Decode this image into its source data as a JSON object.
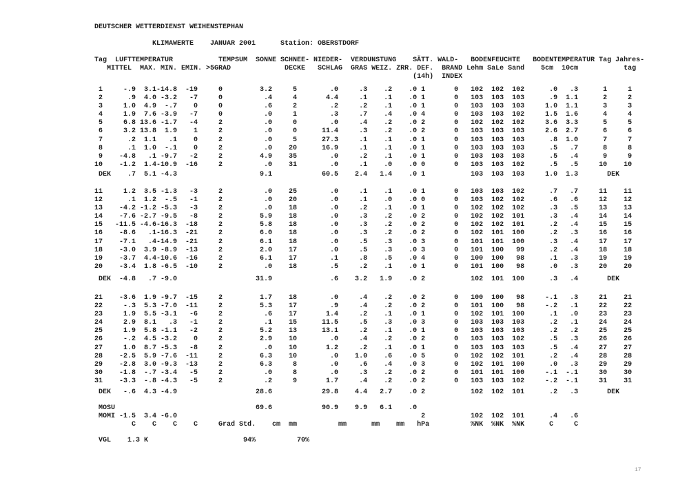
{
  "report": {
    "title": "DEUTSCHER WETTERDIENST WEIHENSTEPHAN",
    "subtitle": {
      "left": "KLIMAWERTE",
      "middle": "JANUAR 2001",
      "right": "Station: OBERSTDORF"
    },
    "page_number": "17"
  },
  "table": {
    "header1": [
      "Tag",
      "LUFTTEMPERATUR",
      "TEMPSUM",
      "SONNE",
      "SCHNEE-",
      "NIEDER-",
      "VERDUNSTUNG",
      "SÄTT.",
      "WALD-",
      "BODENFEUCHTE",
      "BODENTEMPERATUR",
      "Tag",
      "Jahres-"
    ],
    "header2": [
      "MITTEL",
      "MAX.",
      "MIN.",
      "EMIN.",
      ">5GRAD",
      "DECKE",
      "SCHLAG",
      "GRAS",
      "WEIZ.",
      "ZRR.",
      "DEF.",
      "BRAND",
      "Lehm",
      "SaLe",
      "Sand",
      "5cm",
      "10cm",
      "tag"
    ],
    "header3": [
      "(14h)",
      "INDEX"
    ],
    "rows": [
      [
        "1",
        "-.9",
        "3.1",
        "-14.8",
        "-19",
        "0",
        "3.2",
        "5",
        ".0",
        ".3",
        ".2",
        ".0",
        "1",
        "0",
        "102",
        "102",
        "102",
        ".0",
        ".3",
        "1",
        "1"
      ],
      [
        "2",
        ".9",
        "4.0",
        "-3.2",
        "-7",
        "0",
        ".4",
        "4",
        "4.4",
        ".1",
        ".1",
        ".0",
        "1",
        "0",
        "103",
        "103",
        "103",
        ".9",
        "1.1",
        "2",
        "2"
      ],
      [
        "3",
        "1.0",
        "4.9",
        "-.7",
        "0",
        "0",
        ".6",
        "2",
        ".2",
        ".2",
        ".1",
        ".0",
        "1",
        "0",
        "103",
        "103",
        "103",
        "1.0",
        "1.1",
        "3",
        "3"
      ],
      [
        "4",
        "1.9",
        "7.6",
        "-3.9",
        "-7",
        "0",
        ".0",
        "1",
        ".3",
        ".7",
        ".4",
        ".0",
        "4",
        "0",
        "103",
        "103",
        "102",
        "1.5",
        "1.6",
        "4",
        "4"
      ],
      [
        "5",
        "6.8",
        "13.6",
        "-1.7",
        "-4",
        "2",
        ".0",
        "0",
        ".0",
        ".4",
        ".2",
        ".0",
        "2",
        "0",
        "102",
        "102",
        "102",
        "3.6",
        "3.3",
        "5",
        "5"
      ],
      [
        "6",
        "3.2",
        "13.8",
        "1.9",
        "1",
        "2",
        ".0",
        "0",
        "11.4",
        ".3",
        ".2",
        ".0",
        "2",
        "0",
        "103",
        "103",
        "103",
        "2.6",
        "2.7",
        "6",
        "6"
      ],
      [
        "7",
        ".2",
        "1.1",
        ".1",
        "0",
        "2",
        ".0",
        "5",
        "27.3",
        ".1",
        ".1",
        ".0",
        "1",
        "0",
        "103",
        "103",
        "103",
        ".8",
        "1.0",
        "7",
        "7"
      ],
      [
        "8",
        ".1",
        "1.0",
        "-.1",
        "0",
        "2",
        ".0",
        "20",
        "16.9",
        ".1",
        ".1",
        ".0",
        "1",
        "0",
        "103",
        "103",
        "103",
        ".5",
        ".7",
        "8",
        "8"
      ],
      [
        "9",
        "-4.8",
        ".1",
        "-9.7",
        "-2",
        "2",
        "4.9",
        "35",
        ".0",
        ".2",
        ".1",
        ".0",
        "1",
        "0",
        "103",
        "103",
        "103",
        ".5",
        ".4",
        "9",
        "9"
      ],
      [
        "10",
        "-1.2",
        "1.4",
        "-10.9",
        "-16",
        "2",
        ".0",
        "31",
        ".0",
        ".1",
        ".0",
        ".0",
        "0",
        "0",
        "103",
        "103",
        "102",
        ".5",
        ".5",
        "10",
        "10"
      ],
      [
        "11",
        "1.2",
        "3.5",
        "-1.3",
        "-3",
        "2",
        ".0",
        "25",
        ".0",
        ".1",
        ".1",
        ".0",
        "1",
        "0",
        "103",
        "103",
        "102",
        ".7",
        ".7",
        "11",
        "11"
      ],
      [
        "12",
        ".1",
        "1.2",
        "-.5",
        "-1",
        "2",
        ".0",
        "20",
        ".0",
        ".1",
        ".0",
        ".0",
        "0",
        "0",
        "103",
        "102",
        "102",
        ".6",
        ".6",
        "12",
        "12"
      ],
      [
        "13",
        "-4.2",
        "-1.2",
        "-5.3",
        "-3",
        "2",
        ".0",
        "18",
        ".0",
        ".2",
        ".1",
        ".0",
        "1",
        "0",
        "102",
        "102",
        "102",
        ".3",
        ".5",
        "13",
        "13"
      ],
      [
        "14",
        "-7.6",
        "-2.7",
        "-9.5",
        "-8",
        "2",
        "5.9",
        "18",
        ".0",
        ".3",
        ".2",
        ".0",
        "2",
        "0",
        "102",
        "102",
        "101",
        ".3",
        ".4",
        "14",
        "14"
      ],
      [
        "15",
        "-11.5",
        "-4.6",
        "-16.3",
        "-18",
        "2",
        "5.8",
        "18",
        ".0",
        ".3",
        ".2",
        ".0",
        "2",
        "0",
        "102",
        "102",
        "101",
        ".2",
        ".4",
        "15",
        "15"
      ],
      [
        "16",
        "-8.6",
        ".1",
        "-16.3",
        "-21",
        "2",
        "6.0",
        "18",
        ".0",
        ".3",
        ".2",
        ".0",
        "2",
        "0",
        "102",
        "101",
        "100",
        ".2",
        ".3",
        "16",
        "16"
      ],
      [
        "17",
        "-7.1",
        ".4",
        "-14.9",
        "-21",
        "2",
        "6.1",
        "18",
        ".0",
        ".5",
        ".3",
        ".0",
        "3",
        "0",
        "101",
        "101",
        "100",
        ".3",
        ".4",
        "17",
        "17"
      ],
      [
        "18",
        "-3.0",
        "3.9",
        "-8.9",
        "-13",
        "2",
        "2.0",
        "17",
        ".0",
        ".5",
        ".3",
        ".0",
        "3",
        "0",
        "101",
        "100",
        "99",
        ".2",
        ".4",
        "18",
        "18"
      ],
      [
        "19",
        "-3.7",
        "4.4",
        "-10.6",
        "-16",
        "2",
        "6.1",
        "17",
        ".1",
        ".8",
        ".5",
        ".0",
        "4",
        "0",
        "100",
        "100",
        "98",
        ".1",
        ".3",
        "19",
        "19"
      ],
      [
        "20",
        "-3.4",
        "1.8",
        "-6.5",
        "-10",
        "2",
        ".0",
        "18",
        ".5",
        ".2",
        ".1",
        ".0",
        "1",
        "0",
        "101",
        "100",
        "98",
        ".0",
        ".3",
        "20",
        "20"
      ],
      [
        "21",
        "-3.6",
        "1.9",
        "-9.7",
        "-15",
        "2",
        "1.7",
        "18",
        ".0",
        ".4",
        ".2",
        ".0",
        "2",
        "0",
        "100",
        "100",
        "98",
        "-.1",
        ".3",
        "21",
        "21"
      ],
      [
        "22",
        "-.3",
        "5.3",
        "-7.0",
        "-11",
        "2",
        "5.3",
        "17",
        ".9",
        ".4",
        ".2",
        ".0",
        "2",
        "0",
        "101",
        "100",
        "98",
        "-.2",
        ".1",
        "22",
        "22"
      ],
      [
        "23",
        "1.9",
        "5.5",
        "-3.1",
        "-6",
        "2",
        ".6",
        "17",
        "1.4",
        ".2",
        ".1",
        ".0",
        "1",
        "0",
        "102",
        "101",
        "100",
        ".1",
        ".0",
        "23",
        "23"
      ],
      [
        "24",
        "2.9",
        "8.1",
        ".3",
        "-1",
        "2",
        ".1",
        "15",
        "11.5",
        ".5",
        ".3",
        ".0",
        "3",
        "0",
        "103",
        "103",
        "103",
        ".2",
        ".1",
        "24",
        "24"
      ],
      [
        "25",
        "1.9",
        "5.8",
        "-1.1",
        "-2",
        "2",
        "5.2",
        "13",
        "13.1",
        ".2",
        ".1",
        ".0",
        "1",
        "0",
        "103",
        "103",
        "103",
        ".2",
        ".2",
        "25",
        "25"
      ],
      [
        "26",
        "-.2",
        "4.5",
        "-3.2",
        "0",
        "2",
        "2.9",
        "10",
        ".0",
        ".4",
        ".2",
        ".0",
        "2",
        "0",
        "103",
        "103",
        "102",
        ".5",
        ".3",
        "26",
        "26"
      ],
      [
        "27",
        "1.0",
        "8.7",
        "-5.3",
        "-8",
        "2",
        ".0",
        "10",
        "1.2",
        ".2",
        ".1",
        ".0",
        "1",
        "0",
        "103",
        "103",
        "103",
        ".5",
        ".4",
        "27",
        "27"
      ],
      [
        "28",
        "-2.5",
        "5.9",
        "-7.6",
        "-11",
        "2",
        "6.3",
        "10",
        ".0",
        "1.0",
        ".6",
        ".0",
        "5",
        "0",
        "102",
        "102",
        "101",
        ".2",
        ".4",
        "28",
        "28"
      ],
      [
        "29",
        "-2.8",
        "3.0",
        "-9.3",
        "-13",
        "2",
        "6.3",
        "8",
        ".0",
        ".6",
        ".4",
        ".0",
        "3",
        "0",
        "102",
        "101",
        "100",
        ".0",
        ".3",
        "29",
        "29"
      ],
      [
        "30",
        "-1.8",
        "-.7",
        "-3.4",
        "-5",
        "2",
        ".0",
        "8",
        ".0",
        ".3",
        ".2",
        ".0",
        "2",
        "0",
        "101",
        "101",
        "100",
        "-.1",
        "-.1",
        "30",
        "30"
      ],
      [
        "31",
        "-3.3",
        "-.8",
        "-4.3",
        "-5",
        "2",
        ".2",
        "9",
        "1.7",
        ".4",
        ".2",
        ".0",
        "2",
        "0",
        "103",
        "103",
        "102",
        "-.2",
        "-.1",
        "31",
        "31"
      ]
    ],
    "dek_rows": [
      [
        "DEK",
        ".7",
        "5.1",
        "-4.3",
        "",
        "",
        "9.1",
        "",
        "60.5",
        "2.4",
        "1.4",
        ".0",
        "1",
        "",
        "103",
        "103",
        "103",
        "1.0",
        "1.3",
        "DEK",
        ""
      ],
      [
        "DEK",
        "-4.8",
        ".7",
        "-9.0",
        "",
        "",
        "31.9",
        "",
        ".6",
        "3.2",
        "1.9",
        ".0",
        "2",
        "",
        "102",
        "101",
        "100",
        ".3",
        ".4",
        "DEK",
        ""
      ],
      [
        "DEK",
        "-.6",
        "4.3",
        "-4.9",
        "",
        "",
        "28.6",
        "",
        "29.8",
        "4.4",
        "2.7",
        ".0",
        "2",
        "",
        "102",
        "102",
        "101",
        ".2",
        ".3",
        "DEK",
        ""
      ]
    ],
    "mosu": [
      "MOSU",
      "",
      "",
      "",
      "",
      "",
      "69.6",
      "",
      "90.9",
      "9.9",
      "6.1",
      ".0",
      "",
      "",
      "",
      "",
      "",
      "",
      "",
      "",
      ""
    ],
    "momi": [
      "MOMI",
      "-1.5",
      "3.4",
      "-6.0",
      "",
      "",
      "",
      "",
      "",
      "",
      "",
      "",
      "2",
      "",
      "102",
      "102",
      "101",
      ".4",
      ".6",
      "",
      ""
    ],
    "units": [
      "C",
      "C",
      "C",
      "C",
      "Grad",
      "Std.",
      "cm",
      "mm",
      "mm",
      "mm",
      "mm",
      "hPa",
      "%NK",
      "%NK",
      "%NK",
      "C",
      "C"
    ],
    "vgl": {
      "label": "VGL",
      "value": "1.3 K",
      "sonne_pct": "94%",
      "nieder_pct": "70%"
    }
  }
}
